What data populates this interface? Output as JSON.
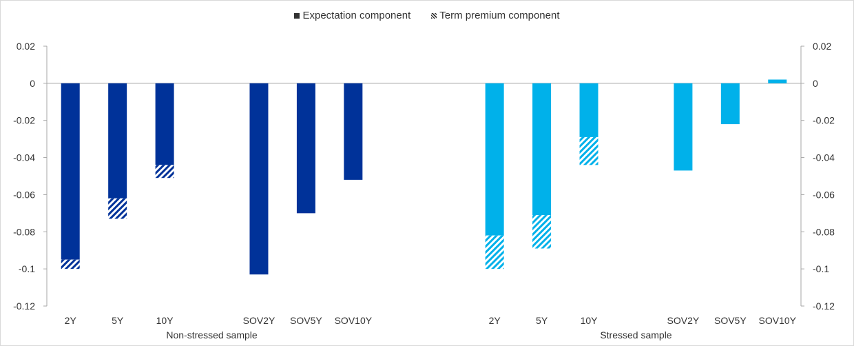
{
  "legend": {
    "items": [
      {
        "label": "Expectation component",
        "style": "solid"
      },
      {
        "label": "Term premium component",
        "style": "hatch"
      }
    ]
  },
  "chart_data": {
    "type": "bar",
    "stacked": true,
    "categories": [
      "2Y",
      "5Y",
      "10Y",
      "",
      "SOV2Y",
      "SOV5Y",
      "SOV10Y",
      "",
      "",
      "2Y",
      "5Y",
      "10Y",
      "",
      "SOV2Y",
      "SOV5Y",
      "SOV10Y"
    ],
    "groups": [
      {
        "label": "Non-stressed sample",
        "start": 0,
        "end": 6,
        "color": "#003299"
      },
      {
        "label": "Stressed sample",
        "start": 9,
        "end": 15,
        "color": "#00b1ea"
      }
    ],
    "series": [
      {
        "name": "Expectation component",
        "values": [
          -0.095,
          -0.062,
          -0.044,
          null,
          -0.103,
          -0.07,
          -0.052,
          null,
          null,
          -0.082,
          -0.071,
          -0.029,
          null,
          -0.047,
          -0.022,
          0.002
        ]
      },
      {
        "name": "Term premium component",
        "values": [
          -0.005,
          -0.011,
          -0.007,
          null,
          0,
          0,
          0,
          null,
          null,
          -0.018,
          -0.018,
          -0.015,
          null,
          0,
          0,
          0
        ]
      }
    ],
    "ylim": [
      -0.12,
      0.02
    ],
    "yticks": [
      "0.02",
      "0",
      "-0.02",
      "-0.04",
      "-0.06",
      "-0.08",
      "-0.1",
      "-0.12"
    ],
    "ytick_values": [
      0.02,
      0,
      -0.02,
      -0.04,
      -0.06,
      -0.08,
      -0.1,
      -0.12
    ],
    "dual_axis": true,
    "legend_position": "top-center",
    "grid": false
  }
}
